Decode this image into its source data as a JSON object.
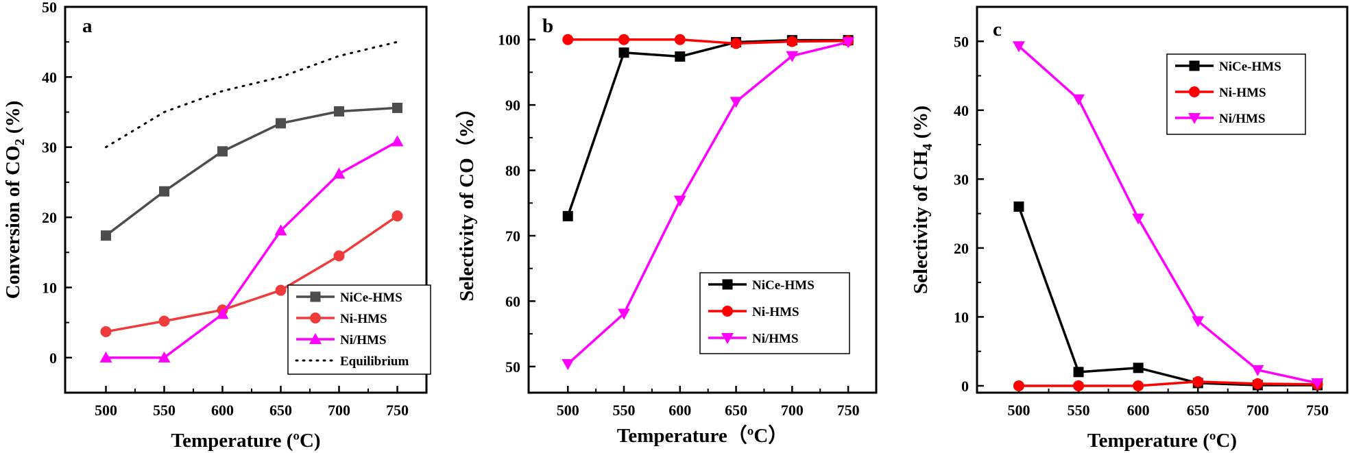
{
  "chart_data": [
    {
      "panel": "a",
      "type": "line",
      "xlabel": "Temperature (ºC)",
      "ylabel_main": "Conversion of CO",
      "ylabel_sub": "2",
      "ylabel_tail": " (%)",
      "xlim": [
        465,
        775
      ],
      "ylim": [
        -5,
        50
      ],
      "xticks": [
        500,
        550,
        600,
        650,
        700,
        750
      ],
      "yticks": [
        0,
        10,
        20,
        30,
        40,
        50
      ],
      "grid": false,
      "legend_position": "bottom-right",
      "x": [
        500,
        550,
        600,
        650,
        700,
        750
      ],
      "series": [
        {
          "name": "NiCe-HMS",
          "values": [
            17.4,
            23.7,
            29.4,
            33.4,
            35.1,
            35.6
          ],
          "color": "#4d4d4d",
          "marker": "square",
          "dash": "none"
        },
        {
          "name": "Ni-HMS",
          "values": [
            3.7,
            5.2,
            6.8,
            9.6,
            14.5,
            20.2
          ],
          "color": "#ef3b3b",
          "marker": "circle",
          "dash": "none"
        },
        {
          "name": "Ni/HMS",
          "values": [
            0,
            0,
            6.2,
            18.1,
            26.2,
            30.8
          ],
          "color": "#ff00ff",
          "marker": "triangle-up",
          "dash": "none"
        },
        {
          "name": "Equilibrium",
          "values": [
            30.0,
            35.0,
            38.0,
            40.0,
            43.0,
            45.0
          ],
          "color": "#000000",
          "marker": "none",
          "dash": "dotted"
        }
      ]
    },
    {
      "panel": "b",
      "type": "line",
      "xlabel": "Temperature（ºC）",
      "ylabel_main": "Selectivity of CO（%）",
      "ylabel_sub": "",
      "ylabel_tail": "",
      "xlim": [
        465,
        775
      ],
      "ylim": [
        46,
        105
      ],
      "xticks": [
        500,
        550,
        600,
        650,
        700,
        750
      ],
      "yticks": [
        50,
        60,
        70,
        80,
        90,
        100
      ],
      "grid": false,
      "legend_position": "bottom-right",
      "x": [
        500,
        550,
        600,
        650,
        700,
        750
      ],
      "series": [
        {
          "name": "NiCe-HMS",
          "values": [
            73.0,
            98.0,
            97.4,
            99.6,
            99.9,
            99.9
          ],
          "color": "#000000",
          "marker": "square",
          "dash": "none"
        },
        {
          "name": "Ni-HMS",
          "values": [
            100.0,
            100.0,
            100.0,
            99.4,
            99.7,
            99.8
          ],
          "color": "#ff0000",
          "marker": "circle",
          "dash": "none"
        },
        {
          "name": "Ni/HMS",
          "values": [
            50.4,
            58.1,
            75.4,
            90.5,
            97.5,
            99.6
          ],
          "color": "#ff00ff",
          "marker": "triangle-down",
          "dash": "none"
        }
      ]
    },
    {
      "panel": "c",
      "type": "line",
      "xlabel": "Temperature (ºC)",
      "ylabel_main": "Selectivity of CH",
      "ylabel_sub": "4",
      "ylabel_tail": " (%)",
      "xlim": [
        465,
        775
      ],
      "ylim": [
        -1,
        55
      ],
      "xticks": [
        500,
        550,
        600,
        650,
        700,
        750
      ],
      "yticks": [
        0,
        10,
        20,
        30,
        40,
        50
      ],
      "grid": false,
      "legend_position": "top-right",
      "x": [
        500,
        550,
        600,
        650,
        700,
        750
      ],
      "series": [
        {
          "name": "NiCe-HMS",
          "values": [
            26.0,
            2.0,
            2.6,
            0.4,
            0.1,
            0.1
          ],
          "color": "#000000",
          "marker": "square",
          "dash": "none"
        },
        {
          "name": "Ni-HMS",
          "values": [
            0.0,
            0.0,
            0.0,
            0.6,
            0.3,
            0.2
          ],
          "color": "#ff0000",
          "marker": "circle",
          "dash": "none"
        },
        {
          "name": "Ni/HMS",
          "values": [
            49.3,
            41.6,
            24.3,
            9.4,
            2.3,
            0.4
          ],
          "color": "#ff00ff",
          "marker": "triangle-down",
          "dash": "none"
        }
      ]
    }
  ]
}
